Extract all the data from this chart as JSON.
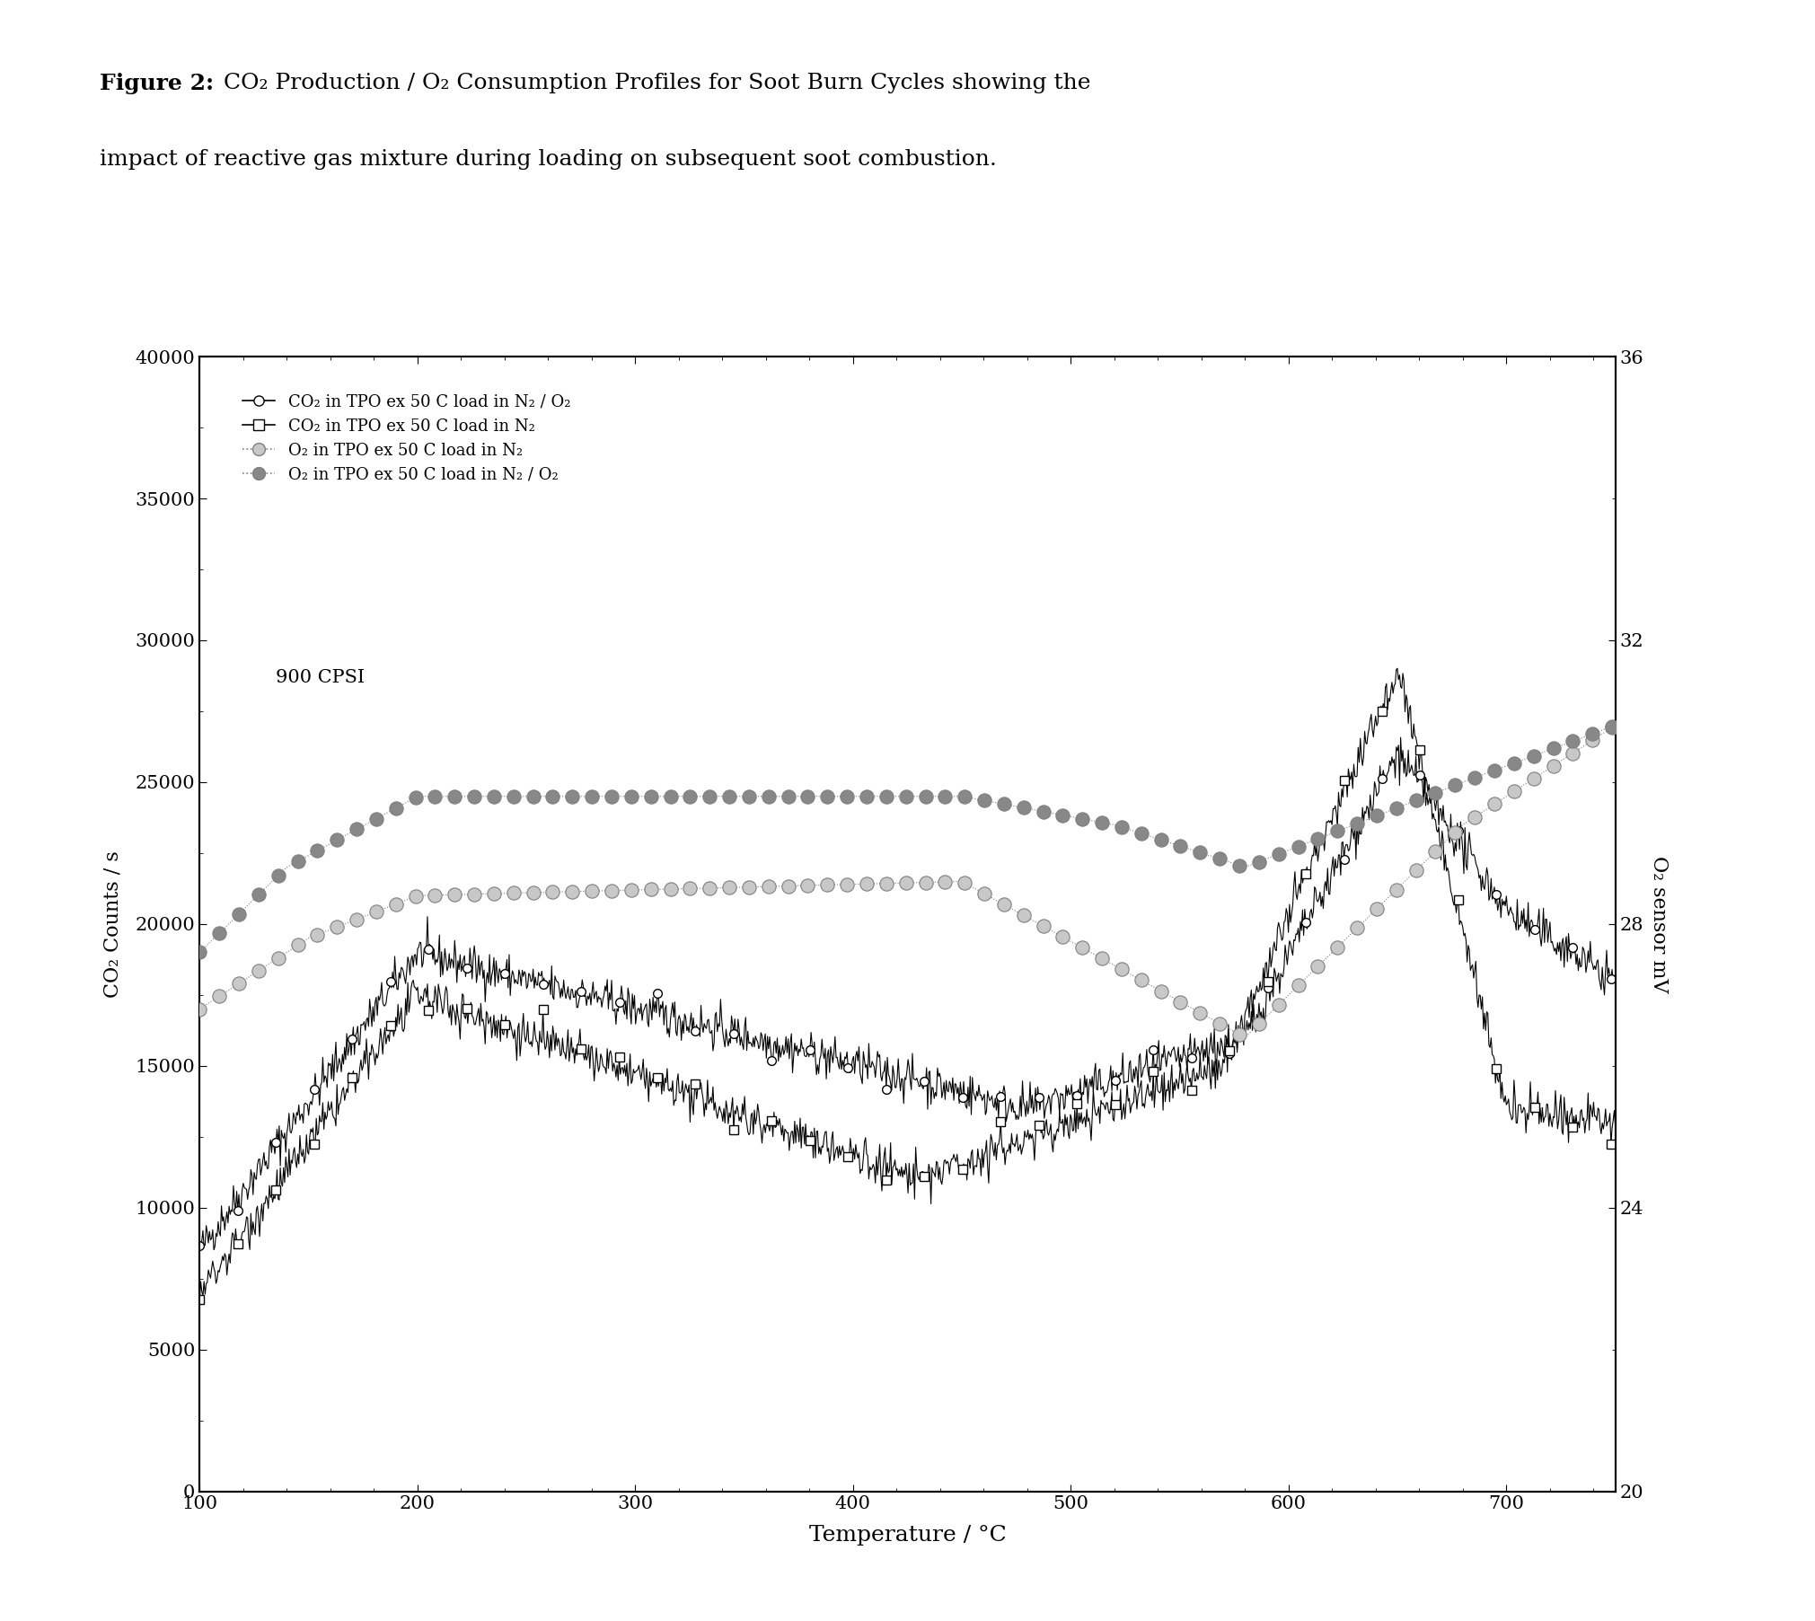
{
  "title_bold": "Figure 2: ",
  "title_normal": "CO₂ Production / O₂ Consumption Profiles for Soot Burn Cycles showing the",
  "title_line2": "impact of reactive gas mixture during loading on subsequent soot combustion.",
  "xlabel": "Temperature / °C",
  "ylabel_left": "CO₂ Counts / s",
  "ylabel_right": "O₂ sensor mV",
  "annotation": "900 CPSI",
  "xlim": [
    100,
    750
  ],
  "ylim_left": [
    0,
    40000
  ],
  "ylim_right": [
    20,
    36
  ],
  "xticks": [
    100,
    200,
    300,
    400,
    500,
    600,
    700
  ],
  "yticks_left": [
    0,
    5000,
    10000,
    15000,
    20000,
    25000,
    30000,
    35000,
    40000
  ],
  "yticks_right": [
    20,
    24,
    28,
    32,
    36
  ],
  "legend": [
    "CO₂ in TPO ex 50 C load in N₂ / O₂",
    "CO₂ in TPO ex 50 C load in N₂",
    "O₂ in TPO ex 50 C load in N₂",
    "O₂ in TPO ex 50 C load in N₂ / O₂"
  ],
  "figsize": [
    20.21,
    18.05
  ],
  "dpi": 100
}
